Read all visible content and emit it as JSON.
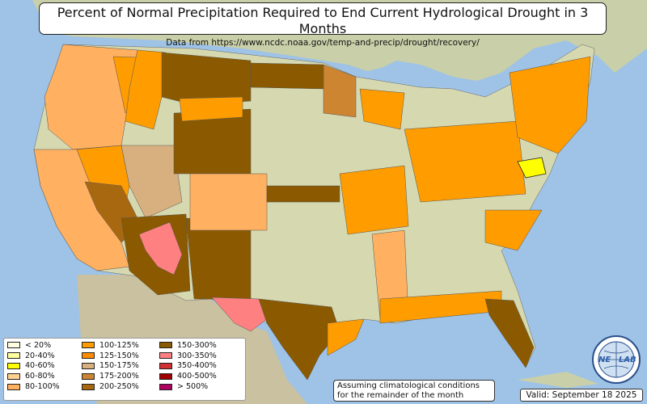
{
  "header": {
    "title": "Percent of Normal Precipitation Required to End Current Hydrological Drought in 3 Months",
    "subtitle": "Data from https://www.ncdc.noaa.gov/temp-and-precip/drought/recovery/"
  },
  "legend": {
    "columns": [
      [
        {
          "label": "< 20%",
          "color": "#ffffe0"
        },
        {
          "label": "20-40%",
          "color": "#ffffa0"
        },
        {
          "label": "40-60%",
          "color": "#ffff00"
        },
        {
          "label": "60-80%",
          "color": "#ffd090"
        },
        {
          "label": "80-100%",
          "color": "#ffb060"
        }
      ],
      [
        {
          "label": "100-125%",
          "color": "#ff9c00"
        },
        {
          "label": "125-150%",
          "color": "#ff8c00"
        },
        {
          "label": "150-175%",
          "color": "#d8b080"
        },
        {
          "label": "175-200%",
          "color": "#cd8532"
        },
        {
          "label": "200-250%",
          "color": "#a86810"
        }
      ],
      [
        {
          "label": "150-300%",
          "color": "#8b5a00"
        },
        {
          "label": "300-350%",
          "color": "#ff8080"
        },
        {
          "label": "350-400%",
          "color": "#d03030"
        },
        {
          "label": "400-500%",
          "color": "#a00000"
        },
        {
          "label": "> 500%",
          "color": "#b00060"
        }
      ]
    ]
  },
  "note": {
    "line1": "Assuming climatological conditions",
    "line2": "for the remainder of the month"
  },
  "valid": "Valid: September 18 2025",
  "logo": {
    "text_left": "NE",
    "text_right": "LAB"
  }
}
